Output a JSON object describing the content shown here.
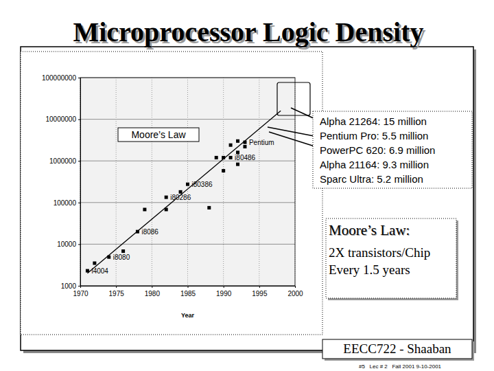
{
  "chart_data": {
    "type": "scatter",
    "title": "Microprocessor Logic Density",
    "xlabel": "Year",
    "log": "y",
    "grid": true,
    "xlim": [
      1970,
      2000
    ],
    "xticks": [
      1970,
      1975,
      1980,
      1985,
      1990,
      1995,
      2000
    ],
    "ylim": [
      1000,
      100000000
    ],
    "yticks": [
      1000,
      10000,
      100000,
      1000000,
      10000000,
      100000000
    ],
    "series": [
      {
        "type": "scatter",
        "marker": "square",
        "color": "#000000",
        "x": [
          1971,
          1972,
          1974,
          1976,
          1978,
          1979,
          1982,
          1982,
          1984,
          1985,
          1988,
          1989,
          1990,
          1990,
          1991,
          1991,
          1992,
          1992,
          1992,
          1993,
          1993
        ],
        "values": [
          2300,
          3500,
          4900,
          6800,
          20000,
          68000,
          134000,
          68000,
          180000,
          275000,
          75000,
          1200000,
          1200000,
          580000,
          1200000,
          2400000,
          830000,
          1600000,
          3000000,
          2800000,
          2200000
        ],
        "labels": [
          "i4004",
          null,
          "i8080",
          null,
          "i8086",
          null,
          "i80286",
          null,
          null,
          "i80386",
          null,
          null,
          null,
          null,
          "i80486",
          null,
          null,
          null,
          null,
          "Pentium",
          null
        ]
      },
      {
        "type": "line",
        "name": "Moore’s Law",
        "line_style": "solid",
        "color": "#000000",
        "x": [
          1971,
          1998
        ],
        "values": [
          2000,
          16000000
        ]
      }
    ],
    "annotations": {
      "callouts": [
        "Alpha 21264: 15 million",
        "Pentium Pro: 5.5 million",
        "PowerPC 620: 6.9 million",
        "Alpha 21164: 9.3 million",
        "Sparc Ultra: 5.2 million"
      ],
      "law_heading": "Moore’s Law:",
      "law_lines": [
        "2X transistors/Chip",
        "Every 1.5 years"
      ]
    }
  },
  "footer": {
    "course": "EECC722 - Shaaban",
    "slide": "#5   Lec # 2   Fall 2001 9-10-2001"
  }
}
